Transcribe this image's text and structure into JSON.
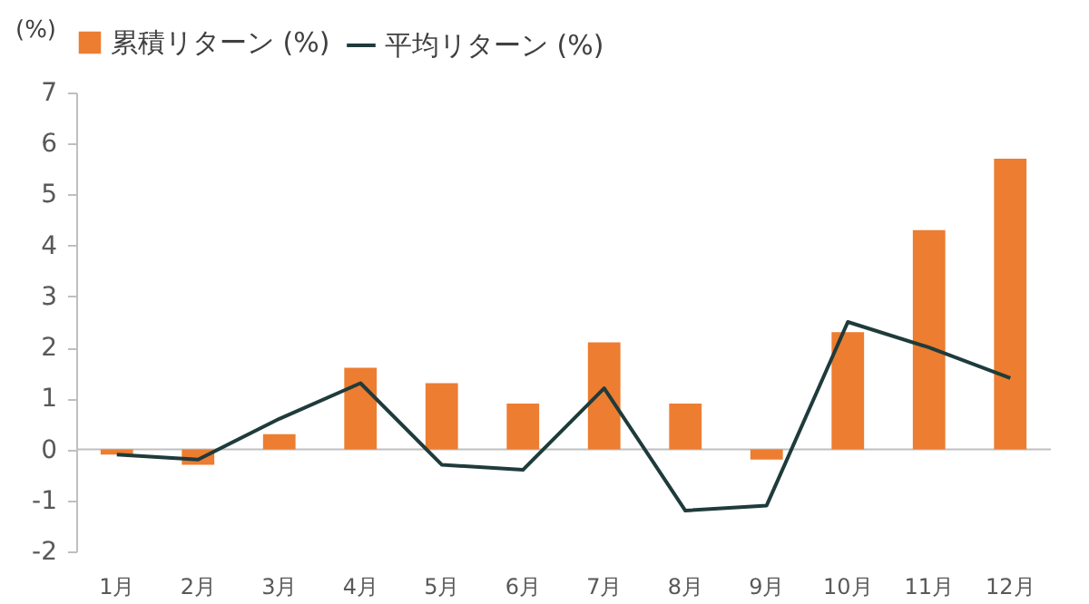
{
  "chart_data": {
    "type": "bar",
    "ylabel": "(%)",
    "categories": [
      "1月",
      "2月",
      "3月",
      "4月",
      "5月",
      "6月",
      "7月",
      "8月",
      "9月",
      "10月",
      "11月",
      "12月"
    ],
    "series": [
      {
        "name": "累積リターン (%)",
        "color": "#ed7d31",
        "values": [
          -0.1,
          -0.3,
          0.3,
          1.6,
          1.3,
          0.9,
          2.1,
          0.9,
          -0.2,
          2.3,
          4.3,
          5.7
        ]
      },
      {
        "name": "平均リターン (%)",
        "type": "line",
        "color": "#1f3b3b",
        "values": [
          -0.1,
          -0.2,
          0.6,
          1.3,
          -0.3,
          -0.4,
          1.2,
          -1.2,
          -1.1,
          2.5,
          2.0,
          1.4
        ]
      }
    ],
    "ylim": [
      -2,
      7
    ],
    "yticks": [
      -2,
      -1,
      0,
      1,
      2,
      3,
      4,
      5,
      6,
      7
    ],
    "ref_lines": [
      {
        "axis": "y",
        "value": 0,
        "color": "#bfbfbf"
      }
    ],
    "grid": false,
    "legend": "top",
    "marker": "none",
    "line_style": "solid"
  }
}
